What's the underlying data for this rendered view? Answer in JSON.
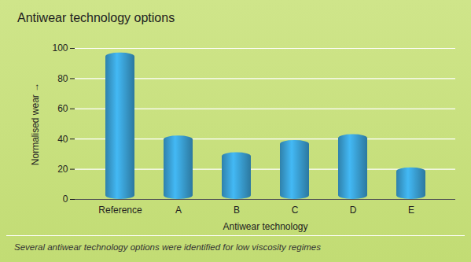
{
  "chart_data": {
    "type": "bar",
    "title": "Antiwear technology options",
    "caption": "Several antiwear technology options were identified for low viscosity regimes",
    "x_label": "Antiwear technology",
    "y_label": "Normalised wear",
    "categories": [
      "Reference",
      "A",
      "B",
      "C",
      "D",
      "E"
    ],
    "values": [
      97,
      42,
      31,
      39,
      43,
      21
    ],
    "color": "#3aa0d4",
    "ylim": [
      0,
      100
    ],
    "yticks": [
      0,
      20,
      40,
      60,
      80,
      100
    ],
    "grid": true
  }
}
